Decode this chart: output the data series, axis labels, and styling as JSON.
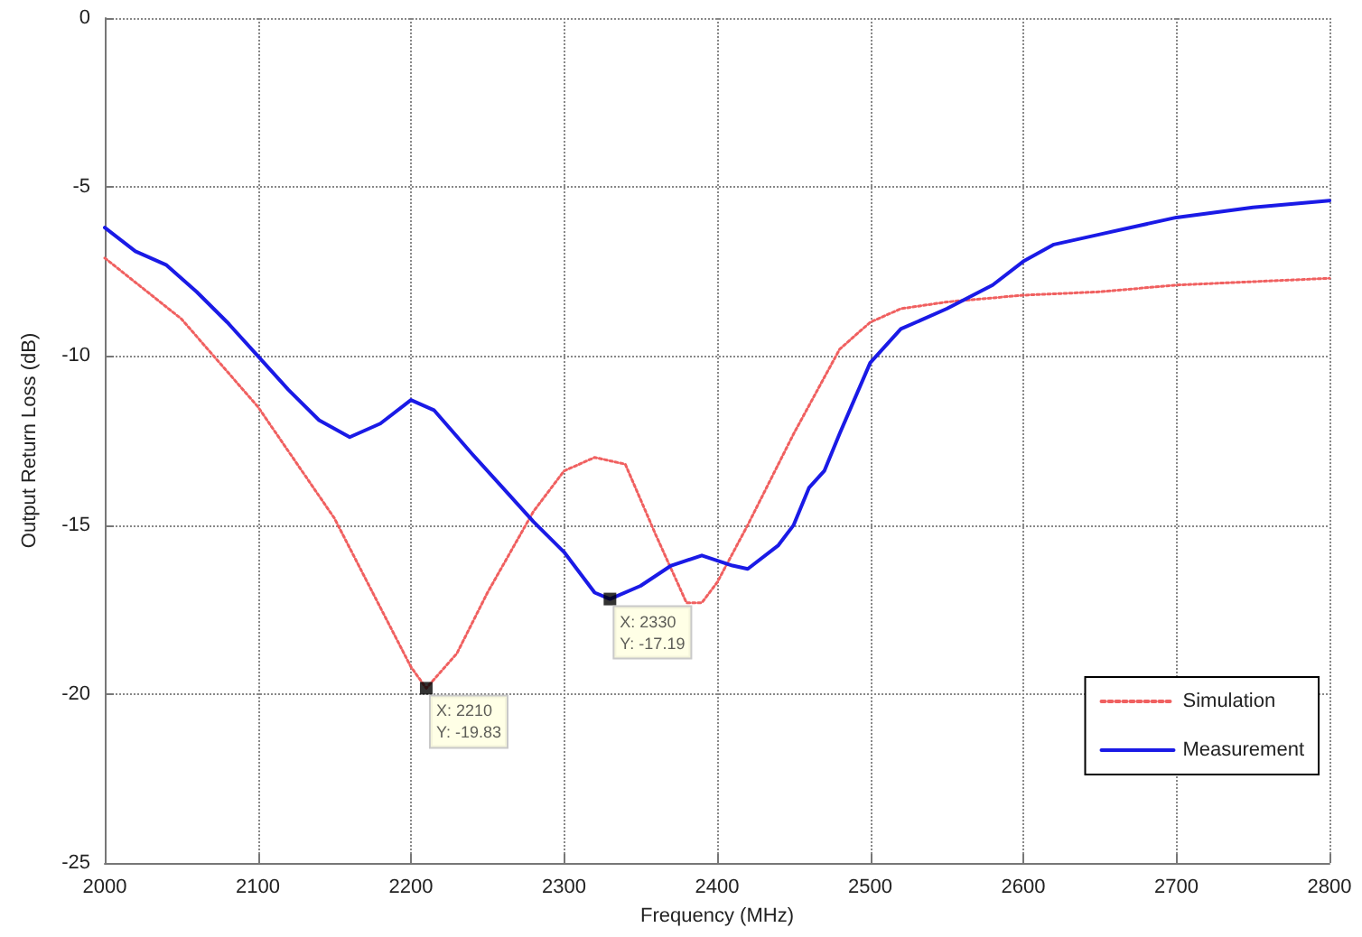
{
  "chart_data": {
    "type": "line",
    "xlabel": "Frequency (MHz)",
    "ylabel": "Output Return Loss (dB)",
    "xlim": [
      2000,
      2800
    ],
    "xticks": [
      2000,
      2100,
      2200,
      2300,
      2400,
      2500,
      2600,
      2700,
      2800
    ],
    "ylim": [
      -25,
      0
    ],
    "yticks": [
      -25,
      -20,
      -15,
      -10,
      -5,
      0
    ],
    "grid": true,
    "legend": "bottom right",
    "marker": "none",
    "series": [
      {
        "name": "Simulation",
        "color": "#f06060",
        "line_style": "dotted",
        "x": [
          2000,
          2050,
          2100,
          2150,
          2200,
          2210,
          2230,
          2250,
          2280,
          2300,
          2320,
          2340,
          2360,
          2380,
          2390,
          2400,
          2420,
          2450,
          2480,
          2500,
          2520,
          2550,
          2600,
          2650,
          2700,
          2800
        ],
        "values": [
          -7.1,
          -8.9,
          -11.5,
          -14.8,
          -19.2,
          -19.83,
          -18.8,
          -17,
          -14.6,
          -13.4,
          -13.0,
          -13.2,
          -15.3,
          -17.3,
          -17.3,
          -16.7,
          -15,
          -12.3,
          -9.8,
          -9.0,
          -8.6,
          -8.4,
          -8.2,
          -8.1,
          -7.9,
          -7.7
        ]
      },
      {
        "name": "Measurement",
        "color": "#1a1ae6",
        "line_style": "solid",
        "x": [
          2000,
          2020,
          2040,
          2060,
          2080,
          2100,
          2120,
          2140,
          2160,
          2180,
          2200,
          2215,
          2240,
          2260,
          2280,
          2300,
          2320,
          2330,
          2350,
          2370,
          2390,
          2410,
          2420,
          2440,
          2450,
          2460,
          2470,
          2480,
          2500,
          2520,
          2550,
          2580,
          2600,
          2620,
          2650,
          2700,
          2750,
          2800
        ],
        "values": [
          -6.2,
          -6.9,
          -7.3,
          -8.1,
          -9.0,
          -10.0,
          -11.0,
          -11.9,
          -12.4,
          -12.0,
          -11.3,
          -11.6,
          -12.9,
          -13.9,
          -14.9,
          -15.8,
          -17.0,
          -17.19,
          -16.8,
          -16.2,
          -15.9,
          -16.2,
          -16.3,
          -15.6,
          -15.0,
          -13.9,
          -13.4,
          -12.3,
          -10.2,
          -9.2,
          -8.6,
          -7.9,
          -7.2,
          -6.7,
          -6.4,
          -5.9,
          -5.6,
          -5.4
        ]
      }
    ],
    "annotations": [
      {
        "text": "X: 2210\nY: -19.83",
        "x": 2210,
        "y": -19.83
      },
      {
        "text": "X: 2330\nY: -17.19",
        "x": 2330,
        "y": -17.19
      }
    ]
  }
}
